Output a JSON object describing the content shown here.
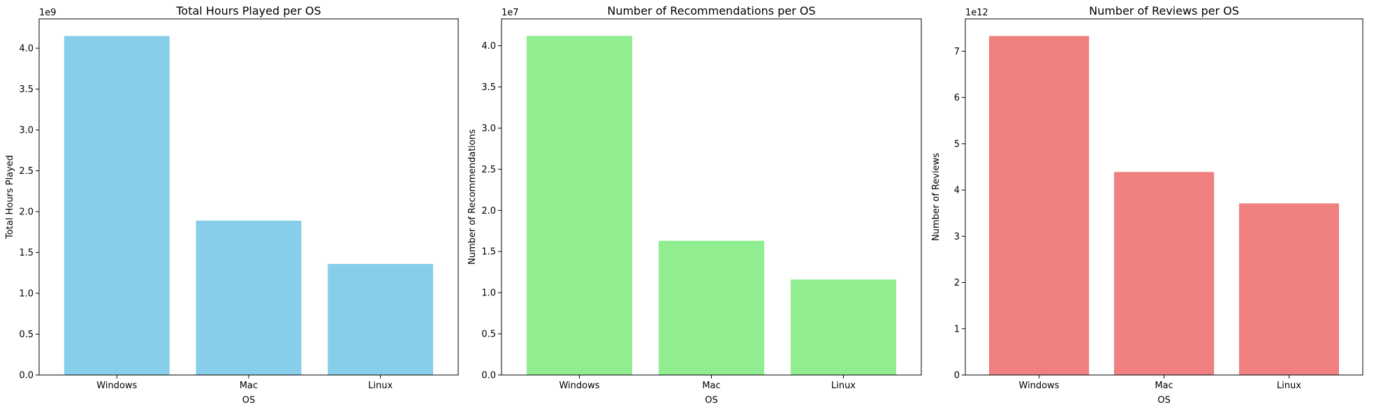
{
  "chart_data": [
    {
      "type": "bar",
      "title": "Total Hours Played per OS",
      "xlabel": "OS",
      "ylabel": "Total Hours Played",
      "categories": [
        "Windows",
        "Mac",
        "Linux"
      ],
      "values": [
        4150000000,
        1890000000,
        1360000000
      ],
      "ylim": [
        0,
        4360000000
      ],
      "yticks": [
        "0.0",
        "0.5",
        "1.0",
        "1.5",
        "2.0",
        "2.5",
        "3.0",
        "3.5",
        "4.0"
      ],
      "ytick_values": [
        0,
        500000000,
        1000000000,
        1500000000,
        2000000000,
        2500000000,
        3000000000,
        3500000000,
        4000000000
      ],
      "offset_label": "1e9",
      "color": "#87CEEB",
      "grid": false,
      "legend": "none"
    },
    {
      "type": "bar",
      "title": "Number of Recommendations per OS",
      "xlabel": "OS",
      "ylabel": "Number of Recommendations",
      "categories": [
        "Windows",
        "Mac",
        "Linux"
      ],
      "values": [
        41200000,
        16300000,
        11600000
      ],
      "ylim": [
        0,
        43270000
      ],
      "yticks": [
        "0.0",
        "0.5",
        "1.0",
        "1.5",
        "2.0",
        "2.5",
        "3.0",
        "3.5",
        "4.0"
      ],
      "ytick_values": [
        0,
        5000000,
        10000000,
        15000000,
        20000000,
        25000000,
        30000000,
        35000000,
        40000000
      ],
      "offset_label": "1e7",
      "color": "#90EE90",
      "grid": false,
      "legend": "none"
    },
    {
      "type": "bar",
      "title": "Number of Reviews per OS",
      "xlabel": "OS",
      "ylabel": "Number of Reviews",
      "categories": [
        "Windows",
        "Mac",
        "Linux"
      ],
      "values": [
        7330000000000,
        4390000000000,
        3710000000000
      ],
      "ylim": [
        0,
        7700000000000
      ],
      "yticks": [
        "0",
        "1",
        "2",
        "3",
        "4",
        "5",
        "6",
        "7"
      ],
      "ytick_values": [
        0,
        1000000000000,
        2000000000000,
        3000000000000,
        4000000000000,
        5000000000000,
        6000000000000,
        7000000000000
      ],
      "offset_label": "1e12",
      "color": "#F08080",
      "grid": false,
      "legend": "none"
    }
  ]
}
